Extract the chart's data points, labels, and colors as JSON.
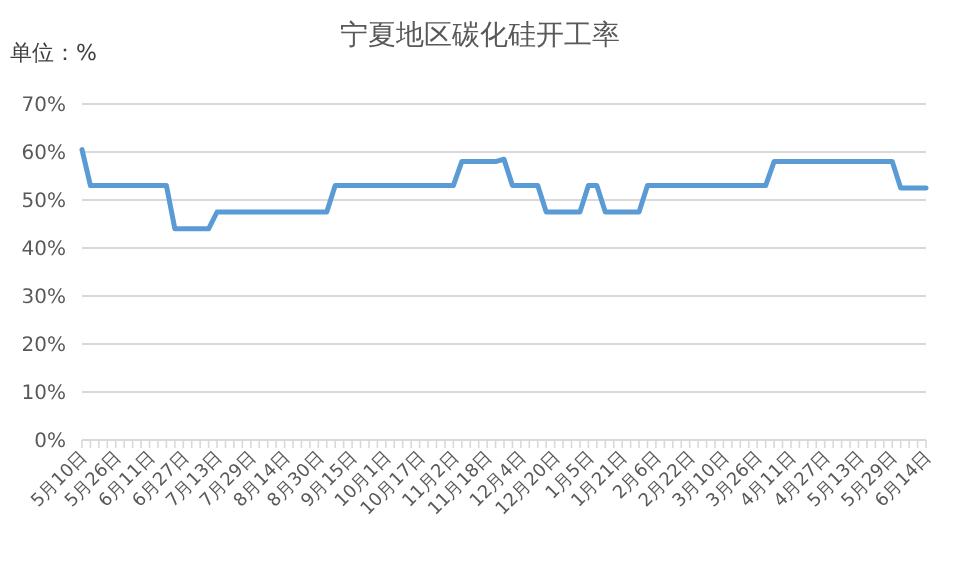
{
  "chart_data": {
    "type": "line",
    "title": "宁夏地区碳化硅开工率",
    "annotations": [
      "单位：%"
    ],
    "categories": [
      "5月10日",
      null,
      null,
      null,
      "5月26日",
      null,
      null,
      null,
      "6月11日",
      null,
      null,
      null,
      "6月27日",
      null,
      null,
      null,
      "7月13日",
      null,
      null,
      null,
      "7月29日",
      null,
      null,
      null,
      "8月14日",
      null,
      null,
      null,
      "8月30日",
      null,
      null,
      null,
      "9月15日",
      null,
      null,
      null,
      "10月1日",
      null,
      null,
      null,
      "10月17日",
      null,
      null,
      null,
      "11月2日",
      null,
      null,
      null,
      "11月18日",
      null,
      null,
      null,
      "12月4日",
      null,
      null,
      null,
      "12月20日",
      null,
      null,
      null,
      "1月5日",
      null,
      null,
      null,
      "1月21日",
      null,
      null,
      null,
      "2月6日",
      null,
      null,
      null,
      "2月22日",
      null,
      null,
      null,
      "3月10日",
      null,
      null,
      null,
      "3月26日",
      null,
      null,
      null,
      "4月11日",
      null,
      null,
      null,
      "4月27日",
      null,
      null,
      null,
      "5月13日",
      null,
      null,
      null,
      "5月29日",
      null,
      null,
      null,
      "6月14日"
    ],
    "series": [
      {
        "color": "#5b9bd5",
        "values": [
          60.5,
          53,
          53,
          53,
          53,
          53,
          53,
          53,
          53,
          53,
          53,
          44,
          44,
          44,
          44,
          44,
          47.5,
          47.5,
          47.5,
          47.5,
          47.5,
          47.5,
          47.5,
          47.5,
          47.5,
          47.5,
          47.5,
          47.5,
          47.5,
          47.5,
          53,
          53,
          53,
          53,
          53,
          53,
          53,
          53,
          53,
          53,
          53,
          53,
          53,
          53,
          53,
          58,
          58,
          58,
          58,
          58,
          58.5,
          53,
          53,
          53,
          53,
          47.5,
          47.5,
          47.5,
          47.5,
          47.5,
          53,
          53,
          47.5,
          47.5,
          47.5,
          47.5,
          47.5,
          53,
          53,
          53,
          53,
          53,
          53,
          53,
          53,
          53,
          53,
          53,
          53,
          53,
          53,
          53,
          58,
          58,
          58,
          58,
          58,
          58,
          58,
          58,
          58,
          58,
          58,
          58,
          58,
          58,
          58,
          52.5,
          52.5,
          52.5,
          52.5
        ]
      }
    ],
    "ylim": [
      0,
      70
    ],
    "yticks": [
      {
        "value": 0,
        "label": "0%"
      },
      {
        "value": 10,
        "label": "10%"
      },
      {
        "value": 20,
        "label": "20%"
      },
      {
        "value": 30,
        "label": "30%"
      },
      {
        "value": 40,
        "label": "40%"
      },
      {
        "value": 50,
        "label": "50%"
      },
      {
        "value": 60,
        "label": "60%"
      },
      {
        "value": 70,
        "label": "70%"
      }
    ],
    "grid": "y",
    "line_style": "solid",
    "marker": "none"
  }
}
